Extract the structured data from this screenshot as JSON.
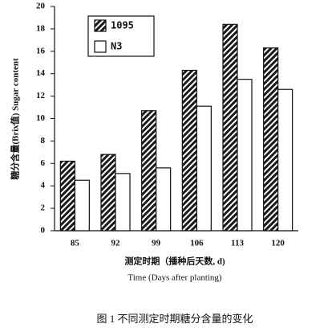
{
  "chart_data": {
    "type": "bar",
    "y_label": "糖分含量(Brix值) Sugar content",
    "x_label": "测定时期（播种后天数, d)",
    "x_label_en": "Time (Days after planting)",
    "caption": "图 1   不同测定时期糖分含量的变化",
    "categories": [
      "85",
      "92",
      "99",
      "106",
      "113",
      "120"
    ],
    "series": [
      {
        "name": "1095",
        "color": "#1a1a1a",
        "hatch": true,
        "values": [
          6.2,
          6.8,
          10.7,
          14.3,
          18.4,
          16.3
        ]
      },
      {
        "name": "N3",
        "color": "#ffffff",
        "hatch": false,
        "values": [
          4.5,
          5.1,
          5.6,
          11.1,
          13.5,
          12.6
        ]
      }
    ],
    "ylim": [
      0,
      20
    ],
    "yticks": [
      0,
      2,
      4,
      6,
      8,
      10,
      12,
      14,
      16,
      18,
      20
    ],
    "legend": "upper left"
  }
}
